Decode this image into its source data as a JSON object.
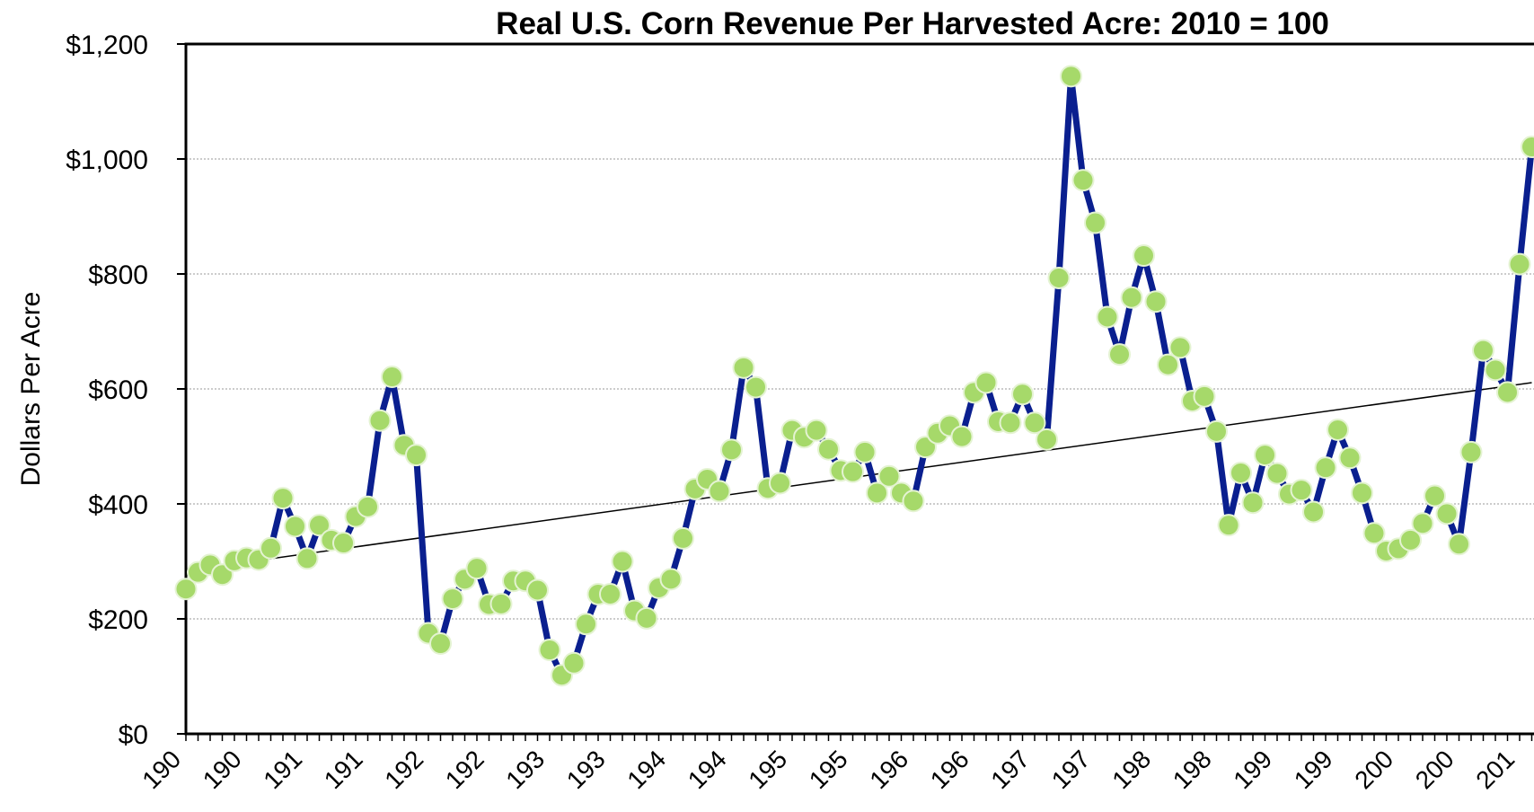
{
  "chart_data": {
    "type": "line",
    "title": "Real U.S. Corn Revenue Per Harvested Acre: 2010 = 100",
    "y_label": "Dollars Per Acre",
    "categories": [
      "190",
      null,
      null,
      null,
      null,
      "190",
      null,
      null,
      null,
      null,
      "191",
      null,
      null,
      null,
      null,
      "191",
      null,
      null,
      null,
      null,
      "192",
      null,
      null,
      null,
      null,
      "192",
      null,
      null,
      null,
      null,
      "193",
      null,
      null,
      null,
      null,
      "193",
      null,
      null,
      null,
      null,
      "194",
      null,
      null,
      null,
      null,
      "194",
      null,
      null,
      null,
      null,
      "195",
      null,
      null,
      null,
      null,
      "195",
      null,
      null,
      null,
      null,
      "196",
      null,
      null,
      null,
      null,
      "196",
      null,
      null,
      null,
      null,
      "197",
      null,
      null,
      null,
      null,
      "197",
      null,
      null,
      null,
      null,
      "198",
      null,
      null,
      null,
      null,
      "198",
      null,
      null,
      null,
      null,
      "199",
      null,
      null,
      null,
      null,
      "199",
      null,
      null,
      null,
      null,
      "200",
      null,
      null,
      null,
      null,
      "200",
      null,
      null,
      null,
      null,
      "201",
      null
    ],
    "series": [
      {
        "color": "#0a1f8f",
        "marker_color": "#a6d96a",
        "values": [
          252,
          281,
          294,
          277,
          301,
          306,
          303,
          323,
          410,
          361,
          305,
          363,
          337,
          332,
          378,
          395,
          545,
          621,
          502,
          485,
          175,
          157,
          235,
          269,
          288,
          225,
          226,
          266,
          266,
          250,
          146,
          102,
          123,
          191,
          243,
          243,
          300,
          214,
          201,
          254,
          269,
          340,
          426,
          443,
          422,
          494,
          637,
          603,
          427,
          436,
          528,
          516,
          528,
          495,
          458,
          456,
          490,
          419,
          448,
          419,
          405,
          499,
          523,
          536,
          517,
          594,
          611,
          543,
          541,
          591,
          541,
          512,
          793,
          1144,
          963,
          889,
          725,
          660,
          759,
          832,
          752,
          642,
          672,
          579,
          587,
          526,
          363,
          454,
          402,
          485,
          453,
          417,
          424,
          386,
          463,
          529,
          480,
          419,
          349,
          318,
          322,
          337,
          366,
          414,
          383,
          330,
          490,
          667,
          633,
          594,
          817,
          1021
        ]
      }
    ],
    "trendline": [
      284,
      611
    ],
    "ylim": [
      0,
      1200
    ],
    "yticks": [
      {
        "value": 0,
        "label": "$0"
      },
      {
        "value": 200,
        "label": "$200"
      },
      {
        "value": 400,
        "label": "$400"
      },
      {
        "value": 600,
        "label": "$600"
      },
      {
        "value": 800,
        "label": "$800"
      },
      {
        "value": 1000,
        "label": "$1,000"
      },
      {
        "value": 1200,
        "label": "$1,200"
      }
    ],
    "grid": true
  }
}
